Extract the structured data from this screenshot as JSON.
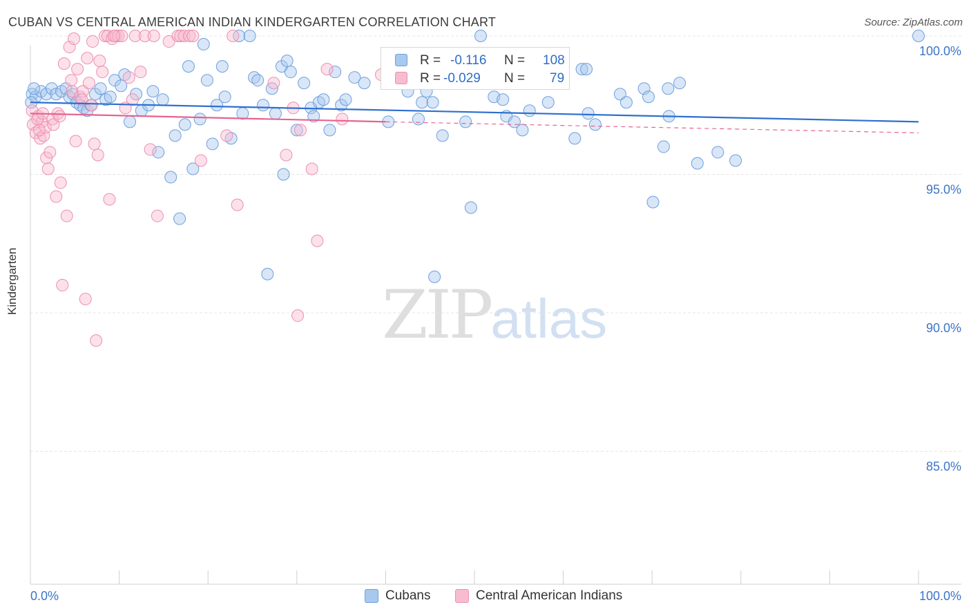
{
  "title": "CUBAN VS CENTRAL AMERICAN INDIAN KINDERGARTEN CORRELATION CHART",
  "source": "Source: ZipAtlas.com",
  "watermark": {
    "zip": "ZIP",
    "atlas": "atlas"
  },
  "legend_stats": [
    {
      "r_label": "R =",
      "r_value": "-0.116",
      "n_label": "N =",
      "n_value": "108",
      "color": "#a9c8ee",
      "border": "#6d9fde"
    },
    {
      "r_label": "R =",
      "r_value": "-0.029",
      "n_label": "N =",
      "n_value": "79",
      "color": "#f8bcd0",
      "border": "#ec8fb0"
    }
  ],
  "colors": {
    "blue_line": "#2e6fce",
    "pink_line": "#e7628f",
    "axis_text": "#3b74c9",
    "grid": "#e4e4e4"
  },
  "chart_data": {
    "type": "scatter",
    "title": "CUBAN VS CENTRAL AMERICAN INDIAN KINDERGARTEN CORRELATION CHART",
    "xlabel": "",
    "ylabel": "Kindergarten",
    "xlim": [
      0,
      100
    ],
    "ylim": [
      80.2,
      100.3
    ],
    "x_tick_labels": [
      "0.0%",
      "100.0%"
    ],
    "y_ticks": [
      85,
      90,
      95,
      100
    ],
    "y_tick_labels": [
      "85.0%",
      "90.0%",
      "95.0%",
      "100.0%"
    ],
    "grid": true,
    "legend_position": "bottom",
    "series": [
      {
        "name": "Cubans",
        "color": "#a9c8ee",
        "edge": "#6d9fde",
        "trend": {
          "x": [
            0,
            100
          ],
          "y": [
            97.6,
            96.9
          ]
        },
        "points": [
          [
            0.2,
            97.9
          ],
          [
            0.6,
            97.8
          ],
          [
            1.2,
            98.0
          ],
          [
            1.8,
            97.9
          ],
          [
            2.4,
            98.1
          ],
          [
            2.9,
            97.9
          ],
          [
            3.5,
            98.0
          ],
          [
            4.0,
            98.1
          ],
          [
            4.4,
            97.8
          ],
          [
            4.8,
            97.9
          ],
          [
            5.2,
            97.6
          ],
          [
            5.6,
            97.5
          ],
          [
            6.0,
            97.4
          ],
          [
            6.4,
            97.3
          ],
          [
            6.8,
            97.5
          ],
          [
            7.3,
            97.9
          ],
          [
            7.9,
            98.1
          ],
          [
            8.5,
            97.7
          ],
          [
            9.0,
            97.8
          ],
          [
            9.5,
            98.4
          ],
          [
            10.2,
            98.2
          ],
          [
            10.6,
            98.6
          ],
          [
            11.2,
            96.9
          ],
          [
            11.9,
            97.9
          ],
          [
            12.5,
            97.3
          ],
          [
            13.3,
            97.5
          ],
          [
            13.8,
            98.0
          ],
          [
            14.4,
            95.8
          ],
          [
            14.9,
            97.7
          ],
          [
            15.8,
            94.9
          ],
          [
            16.3,
            96.4
          ],
          [
            16.8,
            93.4
          ],
          [
            17.4,
            96.8
          ],
          [
            17.8,
            98.9
          ],
          [
            18.3,
            95.2
          ],
          [
            19.1,
            97.0
          ],
          [
            19.5,
            99.7
          ],
          [
            19.9,
            98.4
          ],
          [
            20.5,
            96.1
          ],
          [
            21.0,
            97.5
          ],
          [
            21.6,
            98.9
          ],
          [
            21.9,
            97.8
          ],
          [
            22.6,
            96.3
          ],
          [
            23.5,
            100.0
          ],
          [
            23.9,
            97.2
          ],
          [
            24.7,
            100.0
          ],
          [
            25.2,
            98.5
          ],
          [
            25.6,
            98.4
          ],
          [
            26.2,
            97.5
          ],
          [
            26.7,
            91.4
          ],
          [
            27.2,
            98.1
          ],
          [
            27.6,
            97.2
          ],
          [
            28.3,
            98.9
          ],
          [
            28.5,
            95.0
          ],
          [
            28.9,
            99.1
          ],
          [
            29.3,
            98.7
          ],
          [
            30.0,
            96.6
          ],
          [
            30.8,
            98.3
          ],
          [
            31.6,
            97.4
          ],
          [
            31.9,
            97.1
          ],
          [
            32.5,
            97.6
          ],
          [
            33.0,
            97.7
          ],
          [
            33.7,
            96.6
          ],
          [
            34.3,
            98.7
          ],
          [
            35.0,
            97.5
          ],
          [
            35.5,
            97.7
          ],
          [
            36.5,
            98.5
          ],
          [
            37.6,
            98.3
          ],
          [
            40.3,
            96.9
          ],
          [
            42.5,
            98.0
          ],
          [
            43.7,
            97.0
          ],
          [
            44.1,
            97.6
          ],
          [
            44.6,
            98.0
          ],
          [
            45.3,
            97.6
          ],
          [
            45.5,
            91.3
          ],
          [
            46.4,
            96.4
          ],
          [
            46.9,
            98.5
          ],
          [
            49.0,
            96.9
          ],
          [
            49.6,
            93.8
          ],
          [
            50.7,
            100.0
          ],
          [
            52.2,
            97.8
          ],
          [
            52.3,
            98.3
          ],
          [
            53.2,
            97.7
          ],
          [
            53.6,
            97.1
          ],
          [
            54.5,
            96.9
          ],
          [
            55.4,
            96.6
          ],
          [
            56.2,
            97.3
          ],
          [
            58.3,
            97.6
          ],
          [
            61.3,
            96.3
          ],
          [
            62.1,
            98.8
          ],
          [
            62.6,
            98.8
          ],
          [
            62.8,
            97.2
          ],
          [
            63.6,
            96.8
          ],
          [
            66.4,
            97.9
          ],
          [
            67.1,
            97.6
          ],
          [
            69.1,
            98.1
          ],
          [
            69.6,
            97.8
          ],
          [
            70.1,
            94.0
          ],
          [
            71.3,
            96.0
          ],
          [
            71.8,
            98.1
          ],
          [
            71.9,
            97.1
          ],
          [
            73.1,
            98.3
          ],
          [
            75.1,
            95.4
          ],
          [
            77.4,
            95.8
          ],
          [
            79.4,
            95.5
          ],
          [
            100.0,
            100.0
          ],
          [
            0.1,
            97.6
          ],
          [
            0.4,
            98.1
          ]
        ]
      },
      {
        "name": "Central American Indians",
        "color": "#f8bcd0",
        "edge": "#ec8fb0",
        "trend": {
          "x": [
            0,
            40
          ],
          "y": [
            97.2,
            96.9
          ]
        },
        "trend_dashed": {
          "x": [
            40,
            100
          ],
          "y": [
            96.9,
            96.5
          ]
        },
        "points": [
          [
            0.2,
            97.3
          ],
          [
            0.3,
            96.8
          ],
          [
            0.6,
            96.5
          ],
          [
            0.9,
            97.1
          ],
          [
            1.1,
            96.3
          ],
          [
            1.3,
            96.9
          ],
          [
            1.5,
            96.4
          ],
          [
            1.7,
            96.7
          ],
          [
            1.8,
            95.6
          ],
          [
            2.0,
            95.2
          ],
          [
            2.2,
            95.8
          ],
          [
            2.5,
            97.0
          ],
          [
            2.9,
            94.2
          ],
          [
            3.1,
            97.2
          ],
          [
            3.4,
            94.7
          ],
          [
            3.6,
            91.0
          ],
          [
            3.8,
            99.0
          ],
          [
            4.1,
            93.5
          ],
          [
            4.4,
            99.6
          ],
          [
            4.7,
            98.0
          ],
          [
            4.9,
            99.9
          ],
          [
            5.1,
            96.2
          ],
          [
            5.3,
            98.8
          ],
          [
            5.6,
            97.8
          ],
          [
            5.9,
            98.0
          ],
          [
            6.2,
            90.5
          ],
          [
            6.4,
            99.2
          ],
          [
            6.6,
            98.3
          ],
          [
            6.9,
            97.5
          ],
          [
            7.2,
            96.1
          ],
          [
            7.4,
            89.0
          ],
          [
            7.6,
            95.7
          ],
          [
            7.8,
            99.1
          ],
          [
            8.1,
            98.7
          ],
          [
            8.4,
            100.0
          ],
          [
            8.7,
            100.0
          ],
          [
            8.9,
            94.1
          ],
          [
            9.2,
            99.9
          ],
          [
            9.6,
            100.0
          ],
          [
            9.9,
            100.0
          ],
          [
            10.3,
            100.0
          ],
          [
            10.7,
            97.4
          ],
          [
            11.1,
            98.5
          ],
          [
            11.5,
            97.7
          ],
          [
            11.8,
            100.0
          ],
          [
            12.4,
            98.7
          ],
          [
            12.9,
            100.0
          ],
          [
            13.5,
            95.9
          ],
          [
            13.9,
            100.0
          ],
          [
            14.3,
            93.5
          ],
          [
            15.6,
            99.8
          ],
          [
            16.6,
            100.0
          ],
          [
            16.9,
            100.0
          ],
          [
            17.3,
            100.0
          ],
          [
            17.9,
            100.0
          ],
          [
            18.3,
            100.0
          ],
          [
            19.2,
            95.5
          ],
          [
            22.1,
            96.4
          ],
          [
            23.3,
            93.9
          ],
          [
            22.8,
            100.0
          ],
          [
            27.4,
            98.3
          ],
          [
            28.8,
            95.7
          ],
          [
            29.6,
            97.4
          ],
          [
            30.1,
            89.9
          ],
          [
            30.4,
            96.6
          ],
          [
            31.7,
            95.2
          ],
          [
            32.3,
            92.6
          ],
          [
            33.4,
            98.8
          ],
          [
            35.1,
            97.0
          ],
          [
            39.5,
            98.6
          ],
          [
            0.8,
            97.0
          ],
          [
            1.0,
            96.6
          ],
          [
            1.4,
            97.2
          ],
          [
            2.6,
            96.8
          ],
          [
            3.3,
            97.1
          ],
          [
            4.6,
            98.4
          ],
          [
            5.8,
            97.7
          ],
          [
            7.0,
            99.8
          ],
          [
            9.4,
            100.0
          ]
        ]
      }
    ]
  }
}
